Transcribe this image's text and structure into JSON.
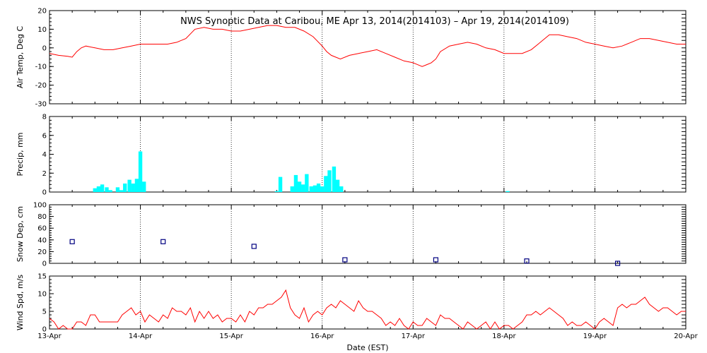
{
  "page_title": "NWS Synoptic Data at Caribou, ME   Apr 13, 2014(2014103) – Apr 19, 2014(2014109)",
  "x_axis_title": "Date (EST)",
  "x_ticks": [
    "13-Apr",
    "14-Apr",
    "15-Apr",
    "16-Apr",
    "17-Apr",
    "18-Apr",
    "19-Apr",
    "20-Apr"
  ],
  "colors": {
    "temp": "#ff0000",
    "precip": "#00ffff",
    "snow": "#000080",
    "wind": "#ff0000",
    "grid": "#000000"
  },
  "chart_data": [
    {
      "type": "line",
      "ylabel": "Air Temp, Deg C",
      "ylim": [
        -30,
        20
      ],
      "yticks": [
        -30,
        -20,
        -10,
        0,
        10,
        20
      ],
      "x_unit": "days since 13-Apr 00:00",
      "series": [
        {
          "x": [
            0,
            0.1,
            0.2,
            0.25,
            0.3,
            0.35,
            0.4,
            0.5,
            0.6,
            0.7,
            0.8,
            0.9,
            1.0,
            1.1,
            1.2,
            1.25,
            1.3,
            1.4,
            1.5,
            1.6,
            1.7,
            1.8,
            1.9,
            2.0,
            2.1,
            2.2,
            2.3,
            2.4,
            2.5,
            2.6,
            2.7,
            2.8,
            2.9,
            3.0,
            3.05,
            3.1,
            3.15,
            3.2,
            3.3,
            3.4,
            3.5,
            3.6,
            3.7,
            3.8,
            3.9,
            4.0,
            4.05,
            4.1,
            4.15,
            4.2,
            4.25,
            4.3,
            4.4,
            4.5,
            4.6,
            4.7,
            4.8,
            4.9,
            5.0,
            5.1,
            5.2,
            5.3,
            5.4,
            5.5,
            5.6,
            5.7,
            5.8,
            5.9,
            6.0,
            6.1,
            6.2,
            6.3,
            6.4,
            6.5,
            6.6,
            6.7,
            6.8,
            6.9,
            7.0
          ],
          "values": [
            -3,
            -4,
            -4.5,
            -5,
            -2,
            0,
            1,
            0,
            -1,
            -1,
            0,
            1,
            2,
            2,
            2,
            2,
            2,
            3,
            5,
            10,
            11,
            10,
            10,
            9,
            9,
            10,
            11,
            12,
            12,
            11,
            11,
            9,
            6,
            1,
            -2,
            -4,
            -5,
            -6,
            -4,
            -3,
            -2,
            -1,
            -3,
            -5,
            -7,
            -8,
            -9,
            -10,
            -9,
            -8,
            -6,
            -2,
            1,
            2,
            3,
            2,
            0,
            -1,
            -3,
            -3,
            -3,
            -1,
            3,
            7,
            7,
            6,
            5,
            3,
            2,
            1,
            0,
            1,
            3,
            5,
            5,
            4,
            3,
            2,
            2
          ]
        }
      ]
    },
    {
      "type": "bar",
      "ylabel": "Precip, mm",
      "ylim": [
        0,
        8
      ],
      "yticks": [
        0,
        2,
        4,
        6,
        8
      ],
      "x_unit": "days since 13-Apr 00:00",
      "bar_width_days": 0.04167,
      "series": [
        {
          "x": [
            0.5,
            0.54,
            0.58,
            0.63,
            0.67,
            0.75,
            0.79,
            0.83,
            0.88,
            0.92,
            0.96,
            1.0,
            1.04,
            2.5,
            2.54,
            2.67,
            2.71,
            2.75,
            2.79,
            2.83,
            2.88,
            2.92,
            2.96,
            3.0,
            3.04,
            3.08,
            3.13,
            3.17,
            3.21,
            5.04
          ],
          "values": [
            0.4,
            0.6,
            0.8,
            0.5,
            0.2,
            0.5,
            0.2,
            0.9,
            1.3,
            0.9,
            1.4,
            4.3,
            1.1,
            0.1,
            1.6,
            0.6,
            1.8,
            1.1,
            0.8,
            1.9,
            0.6,
            0.7,
            0.9,
            0.6,
            1.7,
            2.3,
            2.7,
            1.3,
            0.6,
            0.1
          ]
        }
      ]
    },
    {
      "type": "scatter",
      "ylabel": "Snow Dep, cm",
      "ylim": [
        0,
        100
      ],
      "yticks": [
        0,
        20,
        40,
        60,
        80,
        100
      ],
      "x_unit": "days since 13-Apr 00:00",
      "series": [
        {
          "x": [
            0.25,
            1.25,
            2.25,
            3.25,
            4.25,
            5.25,
            6.25
          ],
          "values": [
            37,
            37,
            29,
            6,
            6,
            4,
            0
          ]
        }
      ]
    },
    {
      "type": "line",
      "ylabel": "Wind Spd, m/s",
      "ylim": [
        0,
        15
      ],
      "yticks": [
        0,
        5,
        10,
        15
      ],
      "x_unit": "days since 13-Apr 00:00",
      "series": [
        {
          "x": [
            0,
            0.05,
            0.1,
            0.15,
            0.2,
            0.25,
            0.3,
            0.35,
            0.4,
            0.45,
            0.5,
            0.55,
            0.6,
            0.65,
            0.7,
            0.75,
            0.8,
            0.85,
            0.9,
            0.95,
            1.0,
            1.05,
            1.1,
            1.15,
            1.2,
            1.25,
            1.3,
            1.35,
            1.4,
            1.45,
            1.5,
            1.55,
            1.6,
            1.65,
            1.7,
            1.75,
            1.8,
            1.85,
            1.9,
            1.95,
            2.0,
            2.05,
            2.1,
            2.15,
            2.2,
            2.25,
            2.3,
            2.35,
            2.4,
            2.45,
            2.5,
            2.55,
            2.6,
            2.65,
            2.7,
            2.75,
            2.8,
            2.85,
            2.9,
            2.95,
            3.0,
            3.05,
            3.1,
            3.15,
            3.2,
            3.25,
            3.3,
            3.35,
            3.4,
            3.45,
            3.5,
            3.55,
            3.6,
            3.65,
            3.7,
            3.75,
            3.8,
            3.85,
            3.9,
            3.95,
            4.0,
            4.05,
            4.1,
            4.15,
            4.2,
            4.25,
            4.3,
            4.35,
            4.4,
            4.45,
            4.5,
            4.55,
            4.6,
            4.65,
            4.7,
            4.75,
            4.8,
            4.85,
            4.9,
            4.95,
            5.0,
            5.05,
            5.1,
            5.15,
            5.2,
            5.25,
            5.3,
            5.35,
            5.4,
            5.45,
            5.5,
            5.55,
            5.6,
            5.65,
            5.7,
            5.75,
            5.8,
            5.85,
            5.9,
            5.95,
            6.0,
            6.05,
            6.1,
            6.15,
            6.2,
            6.25,
            6.3,
            6.35,
            6.4,
            6.45,
            6.5,
            6.55,
            6.6,
            6.65,
            6.7,
            6.75,
            6.8,
            6.85,
            6.9,
            6.95,
            7.0
          ],
          "values": [
            3,
            2,
            0,
            1,
            0,
            0,
            2,
            2,
            1,
            4,
            4,
            2,
            2,
            2,
            2,
            2,
            4,
            5,
            6,
            4,
            5,
            2,
            4,
            3,
            2,
            4,
            3,
            6,
            5,
            5,
            4,
            6,
            2,
            5,
            3,
            5,
            3,
            4,
            2,
            3,
            3,
            2,
            4,
            2,
            5,
            4,
            6,
            6,
            7,
            7,
            8,
            9,
            11,
            6,
            4,
            3,
            6,
            2,
            4,
            5,
            4,
            6,
            7,
            6,
            8,
            7,
            6,
            5,
            8,
            6,
            5,
            5,
            4,
            3,
            1,
            2,
            1,
            3,
            1,
            0,
            2,
            1,
            1,
            3,
            2,
            1,
            4,
            3,
            3,
            2,
            1,
            0,
            2,
            1,
            0,
            1,
            2,
            0,
            2,
            0,
            1,
            1,
            0,
            1,
            2,
            4,
            4,
            5,
            4,
            5,
            6,
            5,
            4,
            3,
            1,
            2,
            1,
            1,
            2,
            1,
            0,
            2,
            3,
            2,
            1,
            6,
            7,
            6,
            7,
            7,
            8,
            9,
            7,
            6,
            5,
            6,
            6,
            5,
            4,
            5,
            5
          ]
        }
      ]
    }
  ]
}
